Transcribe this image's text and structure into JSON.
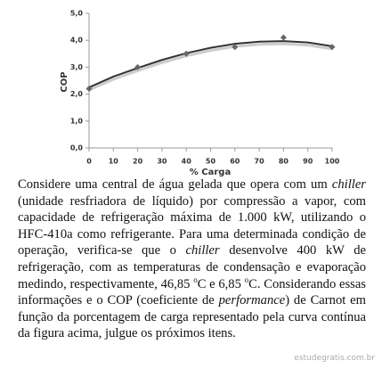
{
  "chart_data": {
    "type": "scatter",
    "x": [
      0,
      20,
      40,
      60,
      80,
      100
    ],
    "values": [
      2.2,
      3.0,
      3.5,
      3.75,
      4.1,
      3.75
    ],
    "color": "#666666",
    "trendline": {
      "x": [
        0,
        10,
        20,
        30,
        40,
        50,
        60,
        70,
        80,
        90,
        100
      ],
      "values": [
        2.25,
        2.65,
        2.97,
        3.27,
        3.52,
        3.72,
        3.87,
        3.95,
        3.97,
        3.92,
        3.78
      ],
      "color": "#333333"
    },
    "xlabel": "% Carga",
    "ylabel": "COP",
    "xlim": [
      0,
      100
    ],
    "xticks": [
      0,
      10,
      20,
      30,
      40,
      50,
      60,
      70,
      80,
      90,
      100
    ],
    "ylim": [
      0,
      5
    ],
    "yticks": [
      {
        "value": 0,
        "label": "0,0"
      },
      {
        "value": 1,
        "label": "1,0"
      },
      {
        "value": 2,
        "label": "2,0"
      },
      {
        "value": 3,
        "label": "3,0"
      },
      {
        "value": 4,
        "label": "4,0"
      },
      {
        "value": 5,
        "label": "5,0"
      }
    ],
    "grid": false
  },
  "text": [
    {
      "text": "Considere uma central de água gelada que opera com um ",
      "style": "normal"
    },
    {
      "text": "chiller",
      "style": "italic"
    },
    {
      "text": " (unidade resfriadora de líquido) por compressão a vapor, com capacidade de refrigeração máxima de 1.000 kW, utilizando o HFC-410a como refrigerante. Para uma determinada condição de operação, verifica-se que o ",
      "style": "normal"
    },
    {
      "text": "chiller",
      "style": "italic"
    },
    {
      "text": " desenvolve 400 kW de refrigeração, com as temperaturas de condensação e evaporação medindo, respectivamente, 46,85 ",
      "style": "normal"
    },
    {
      "text": "o",
      "style": "sup"
    },
    {
      "text": "C e 6,85 ",
      "style": "normal"
    },
    {
      "text": "o",
      "style": "sup"
    },
    {
      "text": "C. Considerando essas informações e o COP (coeficiente de ",
      "style": "normal"
    },
    {
      "text": "performance",
      "style": "italic"
    },
    {
      "text": ") de Carnot em função da porcentagem de carga representado pela curva contínua da figura acima, julgue os próximos itens.",
      "style": "normal"
    }
  ],
  "watermark": "estudegratis.com.br"
}
